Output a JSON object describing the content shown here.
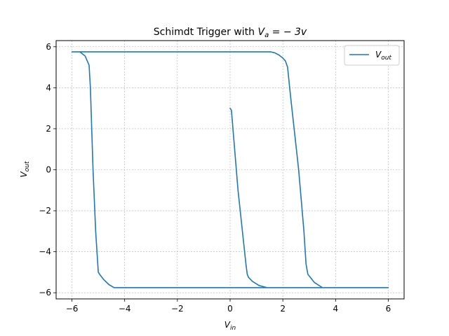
{
  "chart_data": {
    "type": "line",
    "title": {
      "prefix": "Schimdt Trigger with ",
      "var": "V",
      "sub": "a",
      "suffix": " = − 3v"
    },
    "xlabel": {
      "var": "V",
      "sub": "in"
    },
    "ylabel": {
      "var": "V",
      "sub": "out"
    },
    "xlim": [
      -6.6,
      6.6
    ],
    "ylim": [
      -6.3,
      6.3
    ],
    "xticks": [
      -6,
      -4,
      -2,
      0,
      2,
      4,
      6
    ],
    "yticks": [
      -6,
      -4,
      -2,
      0,
      2,
      4,
      6
    ],
    "xtick_labels": [
      "−6",
      "−4",
      "−2",
      "0",
      "2",
      "4",
      "6"
    ],
    "ytick_labels": [
      "−6",
      "−4",
      "−2",
      "0",
      "2",
      "4",
      "6"
    ],
    "grid": true,
    "legend_position": "top-right",
    "series": [
      {
        "name": "V_out",
        "legend": {
          "var": "V",
          "sub": "out"
        },
        "color": "#1f77b4",
        "x": [
          0.0,
          0.05,
          0.3,
          0.6,
          0.65,
          0.7,
          0.85,
          1.1,
          1.4,
          6.0,
          3.5,
          3.2,
          2.95,
          2.88,
          2.8,
          2.6,
          2.3,
          2.18,
          2.1,
          2.0,
          1.85,
          1.7,
          1.55,
          1.4,
          -6.0,
          -5.7,
          -5.5,
          -5.35,
          -5.3,
          -5.2,
          -5.1,
          -5.0,
          -4.95,
          -4.8,
          -4.6,
          -4.4,
          6.0
        ],
        "y": [
          3.0,
          2.9,
          -1.0,
          -4.6,
          -5.1,
          -5.25,
          -5.45,
          -5.65,
          -5.75,
          -5.75,
          -5.75,
          -5.5,
          -5.1,
          -4.6,
          -3.0,
          0.0,
          3.5,
          5.0,
          5.3,
          5.45,
          5.6,
          5.7,
          5.75,
          5.75,
          5.75,
          5.75,
          5.55,
          5.1,
          4.0,
          0.0,
          -3.0,
          -5.0,
          -5.1,
          -5.35,
          -5.6,
          -5.75,
          -5.75
        ]
      }
    ]
  }
}
